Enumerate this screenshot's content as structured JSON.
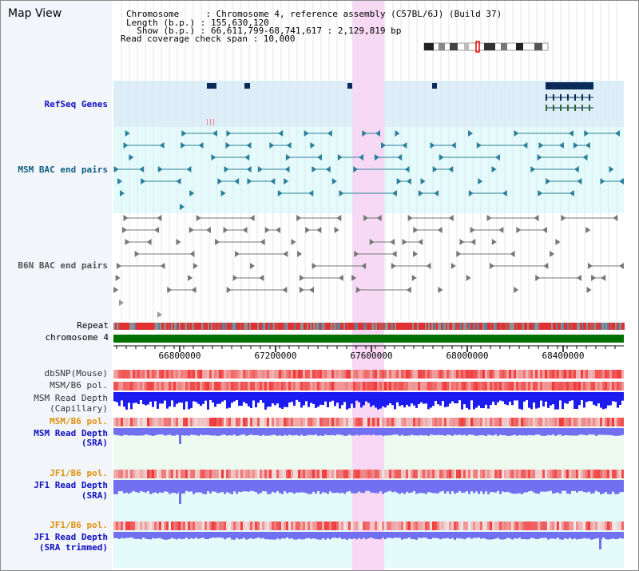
{
  "view": {
    "title": "Map View"
  },
  "info": {
    "line1": "Chromosome     : Chromosome 4, reference assembly (C57BL/6J) (Build 37)",
    "line2": "Length (b.p.) : 155,630,120",
    "line3": "  Show (b.p.) : 66,611,799-68,741,617 : 2,129,819 bp",
    "line4": "Read coverage check span : 10,000"
  },
  "labels": {
    "refseq": "RefSeq Genes",
    "msm_bac": "MSM BAC end pairs",
    "b6n_bac": "B6N BAC end pairs",
    "repeat": "Repeat",
    "chromosome": "chromosome 4",
    "dbsnp": "dbSNP(Mouse)",
    "msm_b6_pol_1": "MSM/B6 pol.",
    "msm_read_depth_cap_1": "MSM Read Depth",
    "msm_read_depth_cap_2": "(Capillary)",
    "msm_b6_pol_2": "MSM/B6 pol.",
    "msm_read_depth_sra_1": "MSM Read Depth",
    "msm_read_depth_sra_2": "(SRA)",
    "jf1_b6_pol_1": "JF1/B6 pol.",
    "jf1_read_depth_1": "JF1 Read Depth",
    "jf1_read_depth_2": "(SRA)",
    "jf1_b6_pol_2": "JF1/B6 pol.",
    "jf1_read_depth_trim_1": "JF1 Read Depth",
    "jf1_read_depth_trim_2": "(SRA trimmed)"
  },
  "axis": {
    "ticks": [
      "66800000",
      "67200000",
      "67600000",
      "68000000",
      "68400000"
    ]
  },
  "colors": {
    "highlight": "#f8d8f4",
    "refseq_bg": "#dceef8",
    "msm_bg": "#e4fbfb",
    "chrom": "#007000",
    "depth_blue": "#1c1cf0",
    "depth_light": "#7070f0",
    "pol_red": "#f04040",
    "teal_feature": "#2a7f9a",
    "gray_feature": "#777777"
  }
}
